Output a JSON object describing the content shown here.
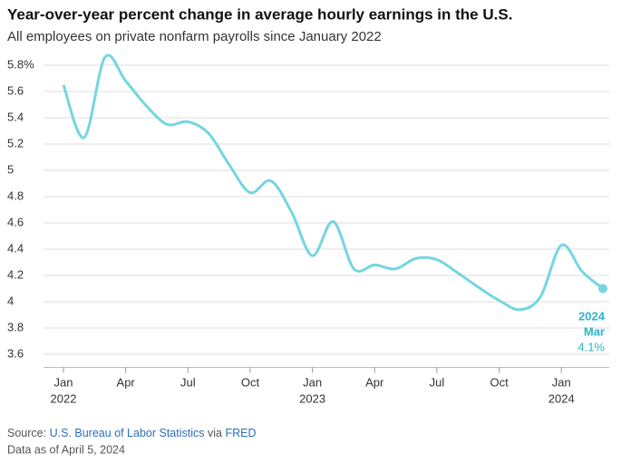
{
  "chart_data": {
    "type": "line",
    "title": "Year-over-year percent change in average hourly earnings in the U.S.",
    "subtitle": "All employees on private nonfarm payrolls since January 2022",
    "categories": [
      "Jan 2022",
      null,
      null,
      "Apr",
      null,
      null,
      "Jul",
      null,
      null,
      "Oct",
      null,
      null,
      "Jan 2023",
      null,
      null,
      "Apr",
      null,
      null,
      "Jul",
      null,
      null,
      "Oct",
      null,
      null,
      "Jan 2024",
      null,
      null
    ],
    "values": [
      5.65,
      5.25,
      5.86,
      5.68,
      5.49,
      5.35,
      5.37,
      5.28,
      5.04,
      4.83,
      4.92,
      4.68,
      4.35,
      4.61,
      4.25,
      4.28,
      4.25,
      4.33,
      4.32,
      4.22,
      4.11,
      4.01,
      3.94,
      4.04,
      4.43,
      4.23,
      4.1
    ],
    "value_labels": [
      null,
      null,
      null,
      null,
      null,
      null,
      null,
      null,
      null,
      null,
      null,
      null,
      null,
      null,
      null,
      null,
      null,
      null,
      null,
      null,
      null,
      null,
      null,
      null,
      null,
      null,
      "4.1%"
    ],
    "color": "#74d6e0",
    "ylim": [
      3.5,
      5.9
    ],
    "yticks": [
      {
        "value": 5.8,
        "label": "5.8%"
      },
      5.6,
      5.4,
      5.2,
      5,
      4.8,
      4.6,
      4.4,
      4.2,
      4,
      3.8,
      3.6
    ],
    "grid": true,
    "annotation": [
      "2024",
      "Mar"
    ],
    "source": [
      "Source:",
      "U.S. Bureau of Labor Statistics",
      "via",
      "FRED"
    ],
    "note": "Data as of April 5, 2024"
  }
}
